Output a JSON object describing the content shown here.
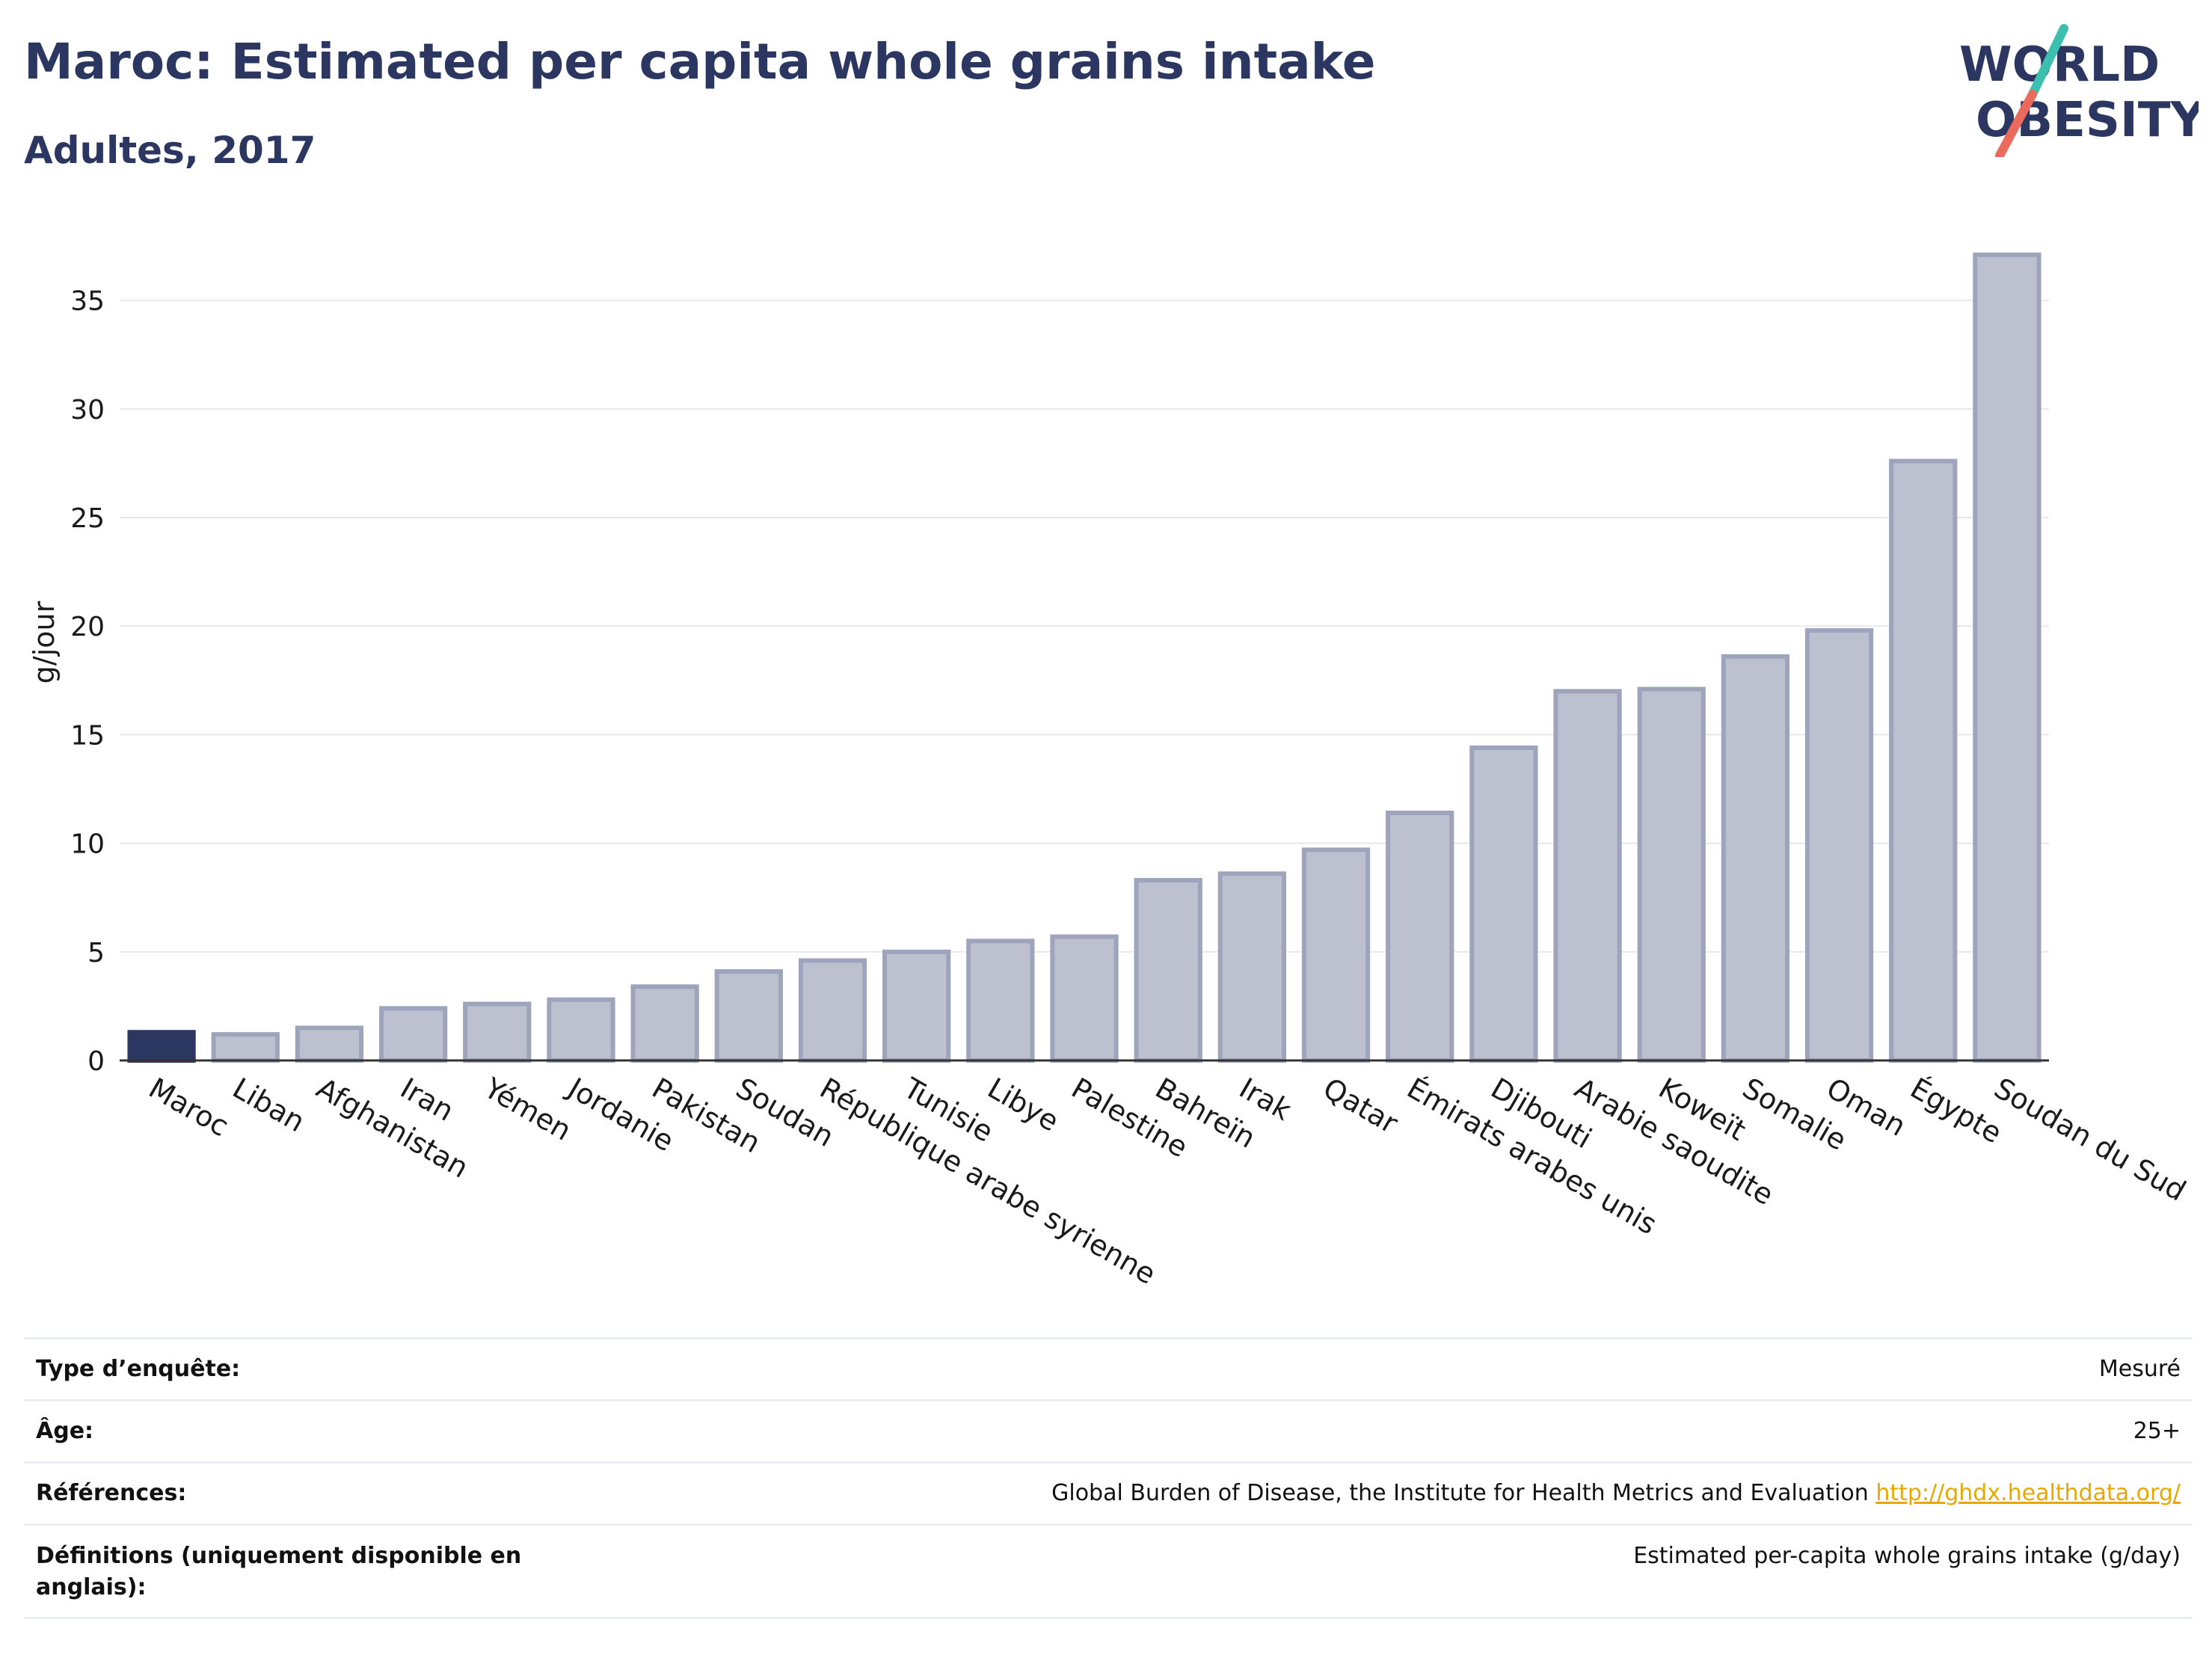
{
  "header": {
    "title": "Maroc: Estimated per capita whole grains intake",
    "subtitle": "Adultes, 2017"
  },
  "logo": {
    "line1": "WORLD",
    "line2": "OBESITY",
    "colors": {
      "text": "#2b3661",
      "slash_teal": "#3cbfae",
      "slash_coral": "#ea6b5c"
    }
  },
  "chart_data": {
    "type": "bar",
    "categories": [
      "Maroc",
      "Liban",
      "Afghanistan",
      "Iran",
      "Yémen",
      "Jordanie",
      "Pakistan",
      "Soudan",
      "République arabe syrienne",
      "Tunisie",
      "Libye",
      "Palestine",
      "Bahreïn",
      "Irak",
      "Qatar",
      "Émirats arabes unis",
      "Djibouti",
      "Arabie saoudite",
      "Koweït",
      "Somalie",
      "Oman",
      "Égypte",
      "Soudan du Sud"
    ],
    "values": [
      1.3,
      1.2,
      1.5,
      2.4,
      2.6,
      2.8,
      3.4,
      4.1,
      4.6,
      5.0,
      5.5,
      5.7,
      8.3,
      8.6,
      9.7,
      11.4,
      14.4,
      17.0,
      17.1,
      18.6,
      19.8,
      27.6,
      37.1
    ],
    "highlight": "Maroc",
    "ylabel": "g/jour",
    "ylim": [
      0,
      38.5
    ],
    "yticks": [
      0,
      5,
      10,
      15,
      20,
      25,
      30,
      35
    ],
    "grid": true,
    "colors": {
      "highlight": "#2b3661",
      "bar_fill": "#bcc0cf",
      "bar_stroke": "#9ea4bb"
    }
  },
  "info": {
    "survey_type_label": "Type d’enquête:",
    "survey_type_value": "Mesuré",
    "age_label": "Âge:",
    "age_value": "25+",
    "references_label": "Références:",
    "references_value": "Global Burden of Disease, the Institute for Health Metrics and Evaluation",
    "references_link": "http://ghdx.healthdata.org/",
    "definitions_label": "Définitions (uniquement disponible en anglais):",
    "definitions_value": "Estimated per-capita whole grains intake (g/day)"
  }
}
